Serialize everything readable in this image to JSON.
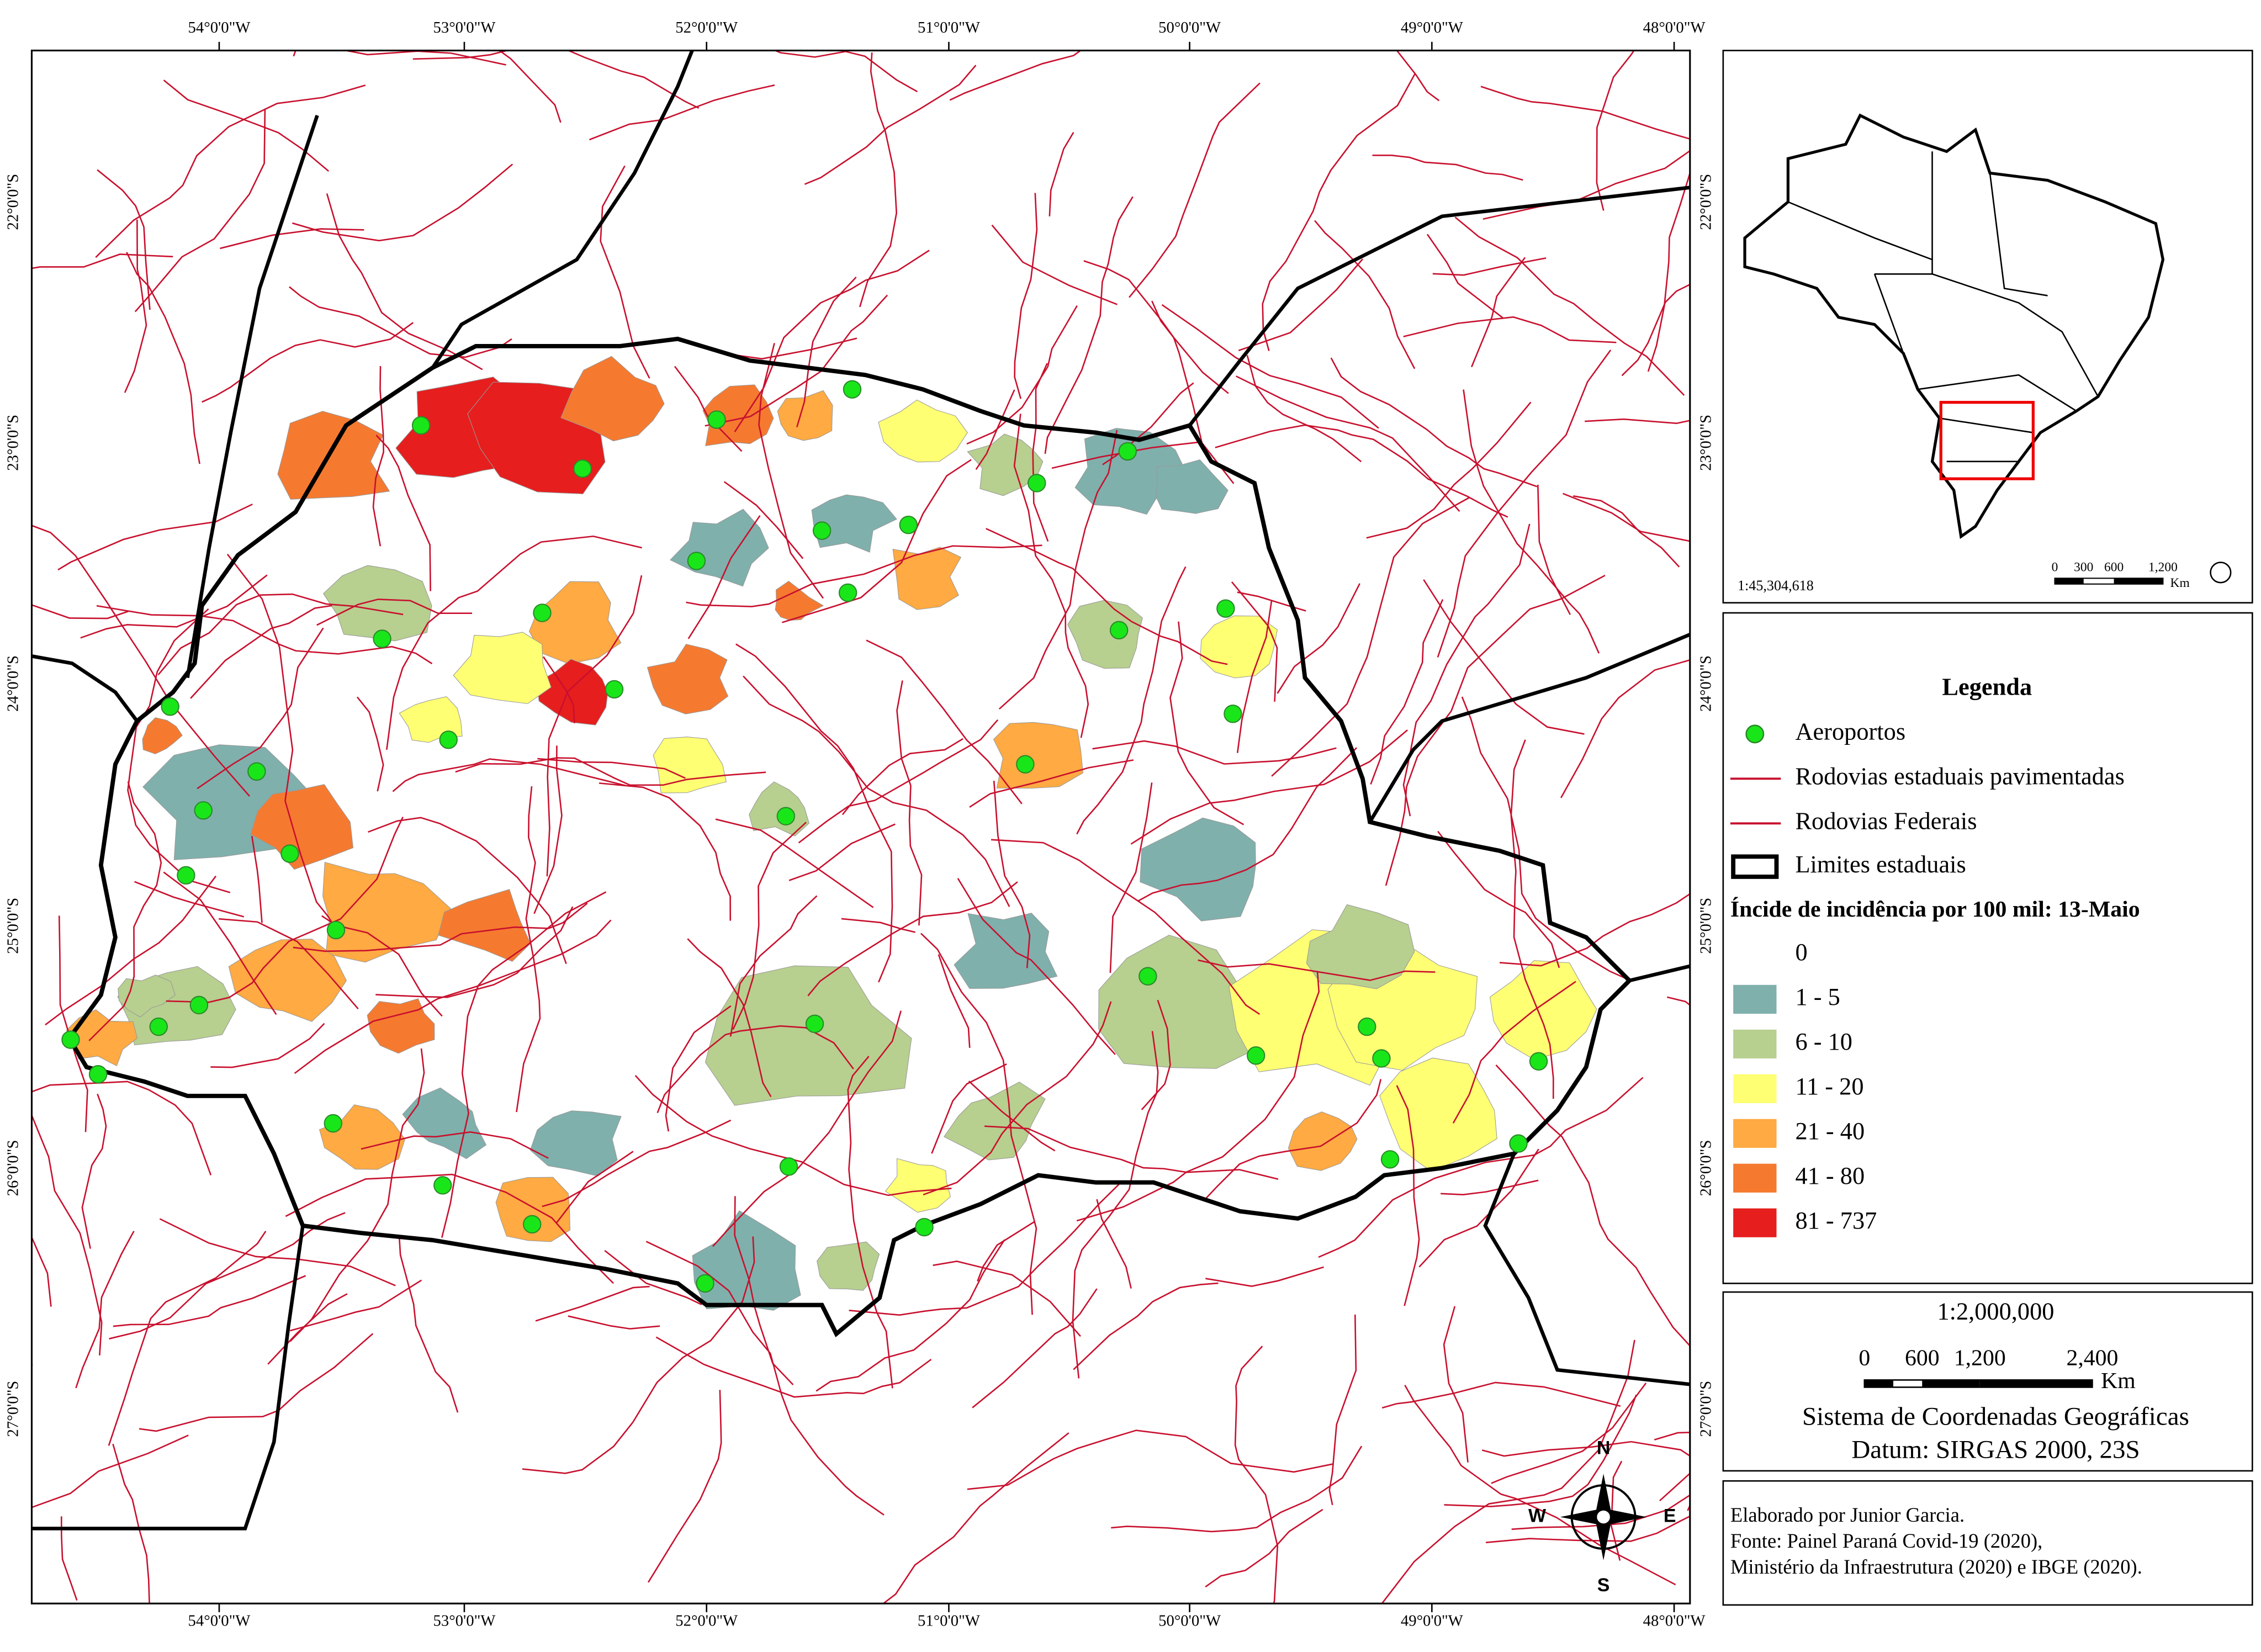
{
  "map": {
    "lon_labels": [
      "54°0'0\"W",
      "53°0'0\"W",
      "52°0'0\"W",
      "51°0'0\"W",
      "50°0'0\"W",
      "49°0'0\"W",
      "48°0'0\"W"
    ],
    "lat_labels": [
      "22°0'0\"S",
      "23°0'0\"S",
      "24°0'0\"S",
      "25°0'0\"S",
      "26°0'0\"S",
      "27°0'0\"S"
    ],
    "compass": {
      "n": "N",
      "e": "E",
      "s": "S",
      "w": "W"
    }
  },
  "inset": {
    "scale": "1:45,304,618",
    "bar_labels": [
      "0",
      "300",
      "600",
      "1,200"
    ],
    "unit": "Km"
  },
  "legend": {
    "title": "Legenda",
    "items": [
      "Aeroportos",
      "Rodovias estaduais pavimentadas",
      "Rodovias Federais",
      "Limites estaduais"
    ],
    "classes_title": "Íncide de incidência por 100 mil: 13-Maio",
    "classes": [
      {
        "label": "0",
        "color": "#ffffff"
      },
      {
        "label": "1 - 5",
        "color": "#7fb0ac"
      },
      {
        "label": "6 - 10",
        "color": "#b7cf8f"
      },
      {
        "label": "11 - 20",
        "color": "#ffff73"
      },
      {
        "label": "21 - 40",
        "color": "#ffaa42"
      },
      {
        "label": "41 - 80",
        "color": "#f57a30"
      },
      {
        "label": "81 - 737",
        "color": "#e61e1e"
      }
    ]
  },
  "scale": {
    "ratio": "1:2,000,000",
    "bar_labels": [
      "0",
      "600",
      "1,200",
      "2,400"
    ],
    "unit": "Km",
    "crs": "Sistema de Coordenadas Geográficas",
    "datum": "Datum: SIRGAS 2000, 23S"
  },
  "credits": [
    "Elaborado por Junior Garcia.",
    "Fonte: Painel Paraná Covid-19 (2020),",
    "Ministério da Infraestrutura (2020) e IBGE (2020)."
  ]
}
